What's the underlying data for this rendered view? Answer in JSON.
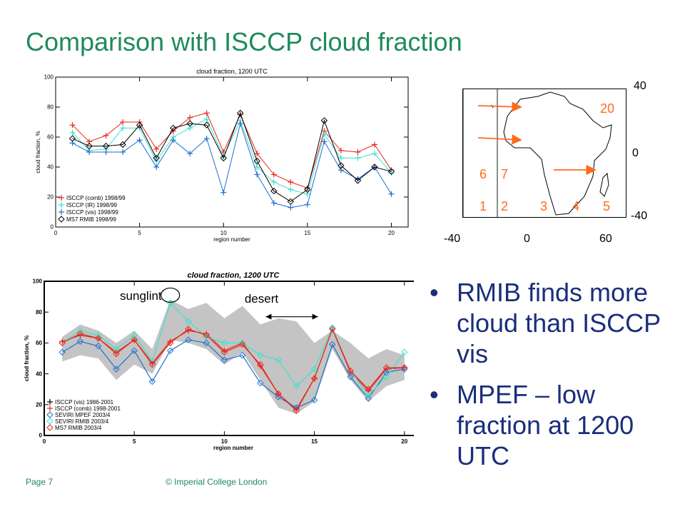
{
  "slide": {
    "title": "Comparison with ISCCP cloud fraction",
    "bullets": [
      "RMIB finds more cloud than ISCCP vis",
      "MPEF – low fraction at 1200 UTC"
    ],
    "footer_page": "Page 7",
    "footer_copyright": "© Imperial College London"
  },
  "map": {
    "lat_labels": [
      "40",
      "0",
      "-40"
    ],
    "lon_labels": [
      "-40",
      "0",
      "60"
    ],
    "region_labels": [
      "20",
      "6",
      "7",
      "1",
      "2",
      "3",
      "4",
      "5"
    ],
    "arrow_color": "#ff6a1a"
  },
  "colors": {
    "title": "#1e8a5b",
    "bullet": "#1a2e7a",
    "red": "#e8281e",
    "cyan": "#3ee0cf",
    "blue": "#1f6fd1",
    "black": "#000000",
    "gray_band": "#c4c4c4"
  },
  "chart_data": [
    {
      "type": "line",
      "title": "cloud fraction, 1200 UTC",
      "xlabel": "region number",
      "ylabel": "cloud fraction, %",
      "xlim": [
        0,
        21
      ],
      "ylim": [
        0,
        100
      ],
      "x_ticks": [
        0,
        5,
        10,
        15,
        20
      ],
      "y_ticks": [
        0,
        20,
        40,
        60,
        80,
        100
      ],
      "legend_position": "bottom-left",
      "x": [
        1,
        2,
        3,
        4,
        5,
        6,
        7,
        8,
        9,
        10,
        11,
        12,
        13,
        14,
        15,
        16,
        17,
        18,
        19,
        20
      ],
      "series": [
        {
          "name": "ISCCP (comb) 1998/99",
          "color": "#e8281e",
          "marker": "+",
          "values": [
            68,
            57,
            61,
            70,
            70,
            52,
            64,
            73,
            76,
            50,
            75,
            49,
            35,
            30,
            26,
            64,
            51,
            50,
            55,
            38
          ]
        },
        {
          "name": "ISCCP (IR) 1998/99",
          "color": "#3ee0cf",
          "marker": "+",
          "values": [
            63,
            51,
            52,
            66,
            66,
            44,
            60,
            66,
            72,
            47,
            71,
            40,
            30,
            25,
            22,
            62,
            46,
            46,
            49,
            36
          ]
        },
        {
          "name": "ISCCP (vis) 1998/99",
          "color": "#1f6fd1",
          "marker": "+",
          "values": [
            56,
            50,
            50,
            50,
            58,
            40,
            58,
            49,
            59,
            23,
            69,
            35,
            16,
            13,
            15,
            57,
            38,
            32,
            40,
            22
          ]
        },
        {
          "name": "MS7 RMIB 1998/99",
          "color": "#000000",
          "marker": "◇",
          "values": [
            59,
            54,
            54,
            55,
            68,
            46,
            66,
            69,
            68,
            46,
            76,
            44,
            24,
            17,
            25,
            71,
            41,
            31,
            40,
            37
          ]
        }
      ]
    },
    {
      "type": "line",
      "title": "cloud fraction, 1200 UTC",
      "xlabel": "region number",
      "ylabel": "cloud fraction, %",
      "xlim": [
        0,
        21
      ],
      "ylim": [
        0,
        100
      ],
      "x_ticks": [
        0,
        5,
        10,
        15,
        20
      ],
      "y_ticks": [
        0,
        20,
        40,
        60,
        80,
        100
      ],
      "legend_position": "bottom-left",
      "annotations": [
        {
          "text": "sunglint",
          "x": 7,
          "y": 88
        },
        {
          "text": "desert",
          "x": 13,
          "y": 86
        }
      ],
      "band": {
        "name": "ISCCP (vis) 1986-2001",
        "x": [
          1,
          2,
          3,
          4,
          5,
          6,
          7,
          8,
          9,
          10,
          11,
          12,
          13,
          14,
          15,
          16,
          17,
          18,
          19,
          20
        ],
        "lower": [
          48,
          52,
          50,
          36,
          46,
          40,
          62,
          60,
          56,
          46,
          54,
          36,
          18,
          14,
          22,
          56,
          36,
          22,
          32,
          36
        ],
        "upper": [
          64,
          72,
          68,
          60,
          68,
          56,
          88,
          82,
          86,
          76,
          84,
          72,
          76,
          74,
          60,
          68,
          60,
          50,
          56,
          52
        ]
      },
      "x": [
        1,
        2,
        3,
        4,
        5,
        6,
        7,
        8,
        9,
        10,
        11,
        12,
        13,
        14,
        15,
        16,
        17,
        18,
        19,
        20
      ],
      "series": [
        {
          "name": "ISCCP (comb) 1998-2001",
          "color": "#e8281e",
          "marker": "+",
          "values": [
            61,
            65,
            63,
            54,
            62,
            47,
            61,
            68,
            66,
            55,
            60,
            45,
            27,
            17,
            37,
            69,
            41,
            29,
            43,
            44
          ]
        },
        {
          "name": "SEVIRI MPEF 2003/4",
          "color": "#1f6fd1",
          "marker": "◇",
          "values": [
            54,
            61,
            58,
            43,
            55,
            35,
            55,
            62,
            60,
            49,
            52,
            34,
            25,
            18,
            23,
            59,
            38,
            24,
            41,
            43
          ]
        },
        {
          "name": "SEVIRI RMIB 2003/4",
          "color": "#3ee0cf",
          "marker": "◇",
          "values": [
            60,
            68,
            65,
            56,
            65,
            48,
            86,
            74,
            64,
            60,
            60,
            52,
            49,
            32,
            43,
            70,
            42,
            26,
            38,
            54
          ]
        },
        {
          "name": "MS7 RMIB 2003/4",
          "color": "#e8281e",
          "marker": "◇",
          "values": [
            60,
            66,
            63,
            53,
            62,
            46,
            60,
            69,
            65,
            54,
            59,
            46,
            27,
            16,
            37,
            69,
            42,
            30,
            44,
            44
          ]
        }
      ]
    }
  ]
}
